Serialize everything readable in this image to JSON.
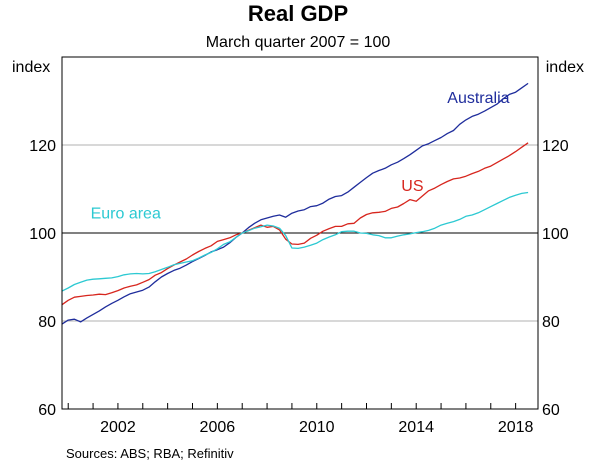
{
  "chart_data": {
    "type": "line",
    "title": "Real GDP",
    "subtitle": "March quarter 2007 = 100",
    "ylabel_left": "index",
    "ylabel_right": "index",
    "xlabel": "",
    "x_ticks": [
      "2002",
      "2006",
      "2010",
      "2014",
      "2018"
    ],
    "y_ticks": [
      "60",
      "80",
      "100",
      "120"
    ],
    "xlim": [
      1999.75,
      2018.9
    ],
    "ylim": [
      60,
      140
    ],
    "grid": true,
    "source": "Sources:   ABS; RBA; Refinitiv",
    "series": [
      {
        "name": "Australia",
        "color": "#1f2d9c",
        "label_x": 2015.25,
        "label_y": 129.5,
        "points": [
          [
            1999.75,
            79.3
          ],
          [
            2000.0,
            80.2
          ],
          [
            2000.25,
            80.4
          ],
          [
            2000.5,
            79.8
          ],
          [
            2000.75,
            80.7
          ],
          [
            2001.0,
            81.5
          ],
          [
            2001.25,
            82.3
          ],
          [
            2001.5,
            83.2
          ],
          [
            2001.75,
            84.0
          ],
          [
            2002.0,
            84.7
          ],
          [
            2002.25,
            85.5
          ],
          [
            2002.5,
            86.2
          ],
          [
            2002.75,
            86.6
          ],
          [
            2003.0,
            87.0
          ],
          [
            2003.25,
            87.7
          ],
          [
            2003.5,
            88.9
          ],
          [
            2003.75,
            90.0
          ],
          [
            2004.0,
            90.8
          ],
          [
            2004.25,
            91.5
          ],
          [
            2004.5,
            92.0
          ],
          [
            2004.75,
            92.7
          ],
          [
            2005.0,
            93.5
          ],
          [
            2005.25,
            94.2
          ],
          [
            2005.5,
            94.9
          ],
          [
            2005.75,
            95.7
          ],
          [
            2006.0,
            96.2
          ],
          [
            2006.25,
            96.8
          ],
          [
            2006.5,
            97.8
          ],
          [
            2006.75,
            99.0
          ],
          [
            2007.0,
            100.0
          ],
          [
            2007.25,
            101.2
          ],
          [
            2007.5,
            102.2
          ],
          [
            2007.75,
            103.0
          ],
          [
            2008.0,
            103.4
          ],
          [
            2008.25,
            103.8
          ],
          [
            2008.5,
            104.1
          ],
          [
            2008.75,
            103.6
          ],
          [
            2009.0,
            104.5
          ],
          [
            2009.25,
            105.0
          ],
          [
            2009.5,
            105.3
          ],
          [
            2009.75,
            106.0
          ],
          [
            2010.0,
            106.2
          ],
          [
            2010.25,
            106.8
          ],
          [
            2010.5,
            107.7
          ],
          [
            2010.75,
            108.3
          ],
          [
            2011.0,
            108.5
          ],
          [
            2011.25,
            109.3
          ],
          [
            2011.5,
            110.4
          ],
          [
            2011.75,
            111.5
          ],
          [
            2012.0,
            112.6
          ],
          [
            2012.25,
            113.6
          ],
          [
            2012.5,
            114.2
          ],
          [
            2012.75,
            114.7
          ],
          [
            2013.0,
            115.5
          ],
          [
            2013.25,
            116.1
          ],
          [
            2013.5,
            116.9
          ],
          [
            2013.75,
            117.8
          ],
          [
            2014.0,
            118.8
          ],
          [
            2014.25,
            119.8
          ],
          [
            2014.5,
            120.3
          ],
          [
            2014.75,
            121.0
          ],
          [
            2015.0,
            121.7
          ],
          [
            2015.25,
            122.6
          ],
          [
            2015.5,
            123.3
          ],
          [
            2015.75,
            124.7
          ],
          [
            2016.0,
            125.7
          ],
          [
            2016.25,
            126.5
          ],
          [
            2016.5,
            127.0
          ],
          [
            2016.75,
            127.7
          ],
          [
            2017.0,
            128.5
          ],
          [
            2017.25,
            129.3
          ],
          [
            2017.5,
            130.5
          ],
          [
            2017.75,
            131.5
          ],
          [
            2018.0,
            132.0
          ],
          [
            2018.25,
            133.0
          ],
          [
            2018.5,
            134.0
          ]
        ]
      },
      {
        "name": "US",
        "color": "#d7261e",
        "label_x": 2013.4,
        "label_y": 109.6,
        "points": [
          [
            1999.75,
            83.7
          ],
          [
            2000.0,
            84.7
          ],
          [
            2000.25,
            85.4
          ],
          [
            2000.5,
            85.6
          ],
          [
            2000.75,
            85.8
          ],
          [
            2001.0,
            85.9
          ],
          [
            2001.25,
            86.1
          ],
          [
            2001.5,
            86.0
          ],
          [
            2001.75,
            86.4
          ],
          [
            2002.0,
            86.9
          ],
          [
            2002.25,
            87.5
          ],
          [
            2002.5,
            87.9
          ],
          [
            2002.75,
            88.2
          ],
          [
            2003.0,
            88.8
          ],
          [
            2003.25,
            89.4
          ],
          [
            2003.5,
            90.4
          ],
          [
            2003.75,
            91.0
          ],
          [
            2004.0,
            91.9
          ],
          [
            2004.25,
            92.7
          ],
          [
            2004.5,
            93.4
          ],
          [
            2004.75,
            94.1
          ],
          [
            2005.0,
            95.0
          ],
          [
            2005.25,
            95.8
          ],
          [
            2005.5,
            96.5
          ],
          [
            2005.75,
            97.1
          ],
          [
            2006.0,
            98.1
          ],
          [
            2006.25,
            98.5
          ],
          [
            2006.5,
            98.9
          ],
          [
            2006.75,
            99.6
          ],
          [
            2007.0,
            100.0
          ],
          [
            2007.25,
            100.6
          ],
          [
            2007.5,
            101.2
          ],
          [
            2007.75,
            101.8
          ],
          [
            2008.0,
            101.3
          ],
          [
            2008.25,
            101.5
          ],
          [
            2008.5,
            100.7
          ],
          [
            2008.75,
            98.6
          ],
          [
            2009.0,
            97.5
          ],
          [
            2009.25,
            97.4
          ],
          [
            2009.5,
            97.7
          ],
          [
            2009.75,
            98.8
          ],
          [
            2010.0,
            99.5
          ],
          [
            2010.25,
            100.4
          ],
          [
            2010.5,
            101.0
          ],
          [
            2010.75,
            101.5
          ],
          [
            2011.0,
            101.5
          ],
          [
            2011.25,
            102.1
          ],
          [
            2011.5,
            102.2
          ],
          [
            2011.75,
            103.4
          ],
          [
            2012.0,
            104.2
          ],
          [
            2012.25,
            104.6
          ],
          [
            2012.5,
            104.7
          ],
          [
            2012.75,
            104.9
          ],
          [
            2013.0,
            105.6
          ],
          [
            2013.25,
            105.9
          ],
          [
            2013.5,
            106.7
          ],
          [
            2013.75,
            107.6
          ],
          [
            2014.0,
            107.2
          ],
          [
            2014.25,
            108.4
          ],
          [
            2014.5,
            109.6
          ],
          [
            2014.75,
            110.2
          ],
          [
            2015.0,
            111.0
          ],
          [
            2015.25,
            111.7
          ],
          [
            2015.5,
            112.3
          ],
          [
            2015.75,
            112.5
          ],
          [
            2016.0,
            112.9
          ],
          [
            2016.25,
            113.5
          ],
          [
            2016.5,
            114.0
          ],
          [
            2016.75,
            114.7
          ],
          [
            2017.0,
            115.2
          ],
          [
            2017.25,
            116.0
          ],
          [
            2017.5,
            116.8
          ],
          [
            2017.75,
            117.6
          ],
          [
            2018.0,
            118.5
          ],
          [
            2018.25,
            119.5
          ],
          [
            2018.5,
            120.5
          ]
        ]
      },
      {
        "name": "Euro area",
        "color": "#2cc9d2",
        "label_x": 2000.9,
        "label_y": 103.3,
        "points": [
          [
            1999.75,
            86.8
          ],
          [
            2000.0,
            87.5
          ],
          [
            2000.25,
            88.3
          ],
          [
            2000.5,
            88.8
          ],
          [
            2000.75,
            89.3
          ],
          [
            2001.0,
            89.5
          ],
          [
            2001.25,
            89.6
          ],
          [
            2001.5,
            89.7
          ],
          [
            2001.75,
            89.8
          ],
          [
            2002.0,
            90.1
          ],
          [
            2002.25,
            90.5
          ],
          [
            2002.5,
            90.7
          ],
          [
            2002.75,
            90.8
          ],
          [
            2003.0,
            90.7
          ],
          [
            2003.25,
            90.8
          ],
          [
            2003.5,
            91.2
          ],
          [
            2003.75,
            91.7
          ],
          [
            2004.0,
            92.2
          ],
          [
            2004.25,
            92.8
          ],
          [
            2004.5,
            93.1
          ],
          [
            2004.75,
            93.4
          ],
          [
            2005.0,
            93.7
          ],
          [
            2005.25,
            94.3
          ],
          [
            2005.5,
            95.0
          ],
          [
            2005.75,
            95.6
          ],
          [
            2006.0,
            96.4
          ],
          [
            2006.25,
            97.4
          ],
          [
            2006.5,
            98.0
          ],
          [
            2006.75,
            99.0
          ],
          [
            2007.0,
            100.0
          ],
          [
            2007.25,
            100.5
          ],
          [
            2007.5,
            101.1
          ],
          [
            2007.75,
            101.4
          ],
          [
            2008.0,
            101.8
          ],
          [
            2008.25,
            101.6
          ],
          [
            2008.5,
            101.1
          ],
          [
            2008.75,
            99.4
          ],
          [
            2009.0,
            96.6
          ],
          [
            2009.25,
            96.5
          ],
          [
            2009.5,
            96.8
          ],
          [
            2009.75,
            97.2
          ],
          [
            2010.0,
            97.7
          ],
          [
            2010.25,
            98.5
          ],
          [
            2010.5,
            99.1
          ],
          [
            2010.75,
            99.6
          ],
          [
            2011.0,
            100.3
          ],
          [
            2011.25,
            100.4
          ],
          [
            2011.5,
            100.4
          ],
          [
            2011.75,
            100.0
          ],
          [
            2012.0,
            99.9
          ],
          [
            2012.25,
            99.6
          ],
          [
            2012.5,
            99.4
          ],
          [
            2012.75,
            98.9
          ],
          [
            2013.0,
            98.9
          ],
          [
            2013.25,
            99.3
          ],
          [
            2013.5,
            99.6
          ],
          [
            2013.75,
            99.8
          ],
          [
            2014.0,
            100.1
          ],
          [
            2014.25,
            100.3
          ],
          [
            2014.5,
            100.6
          ],
          [
            2014.75,
            101.1
          ],
          [
            2015.0,
            101.8
          ],
          [
            2015.25,
            102.2
          ],
          [
            2015.5,
            102.6
          ],
          [
            2015.75,
            103.1
          ],
          [
            2016.0,
            103.8
          ],
          [
            2016.25,
            104.1
          ],
          [
            2016.5,
            104.6
          ],
          [
            2016.75,
            105.3
          ],
          [
            2017.0,
            106.0
          ],
          [
            2017.25,
            106.7
          ],
          [
            2017.5,
            107.4
          ],
          [
            2017.75,
            108.1
          ],
          [
            2018.0,
            108.6
          ],
          [
            2018.25,
            109.0
          ],
          [
            2018.5,
            109.2
          ]
        ]
      }
    ]
  }
}
